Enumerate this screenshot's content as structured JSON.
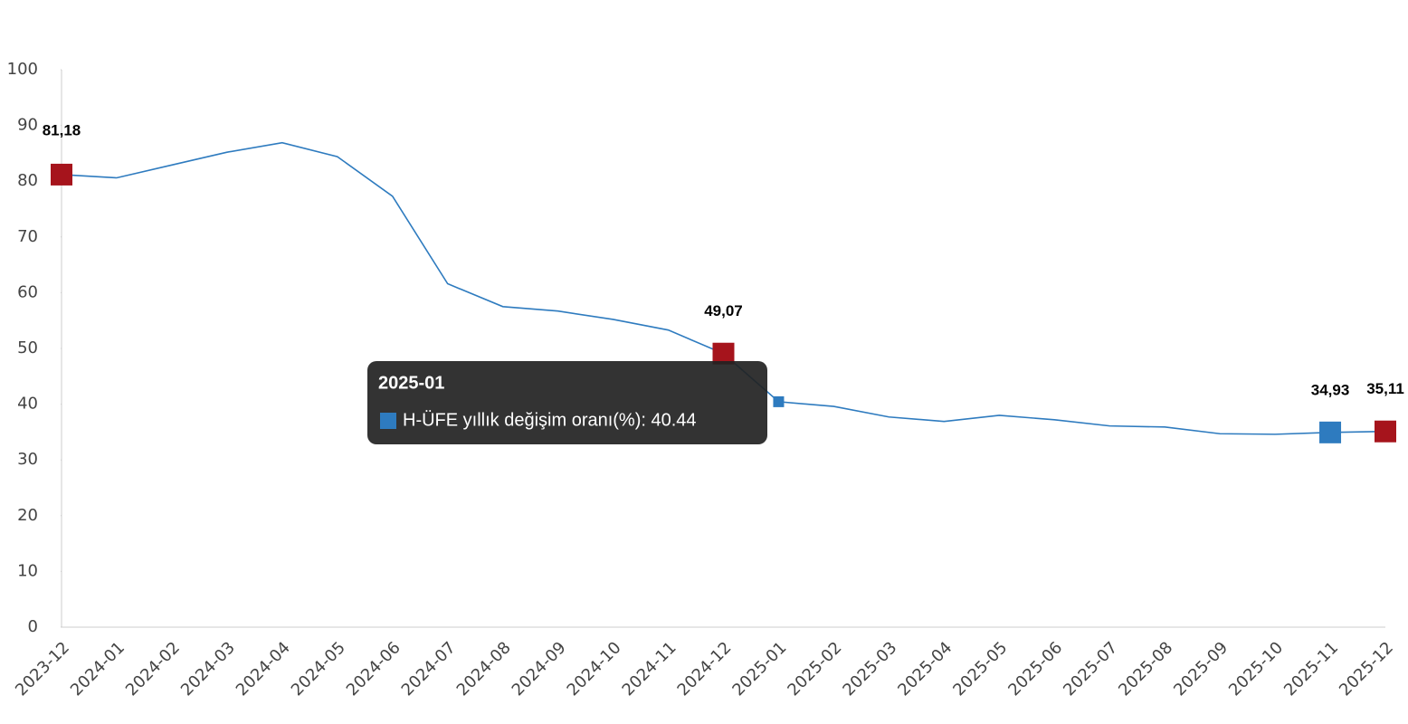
{
  "chart_data": {
    "type": "line",
    "categories": [
      "2023-12",
      "2024-01",
      "2024-02",
      "2024-03",
      "2024-04",
      "2024-05",
      "2024-06",
      "2024-07",
      "2024-08",
      "2024-09",
      "2024-10",
      "2024-11",
      "2024-12",
      "2025-01",
      "2025-02",
      "2025-03",
      "2025-04",
      "2025-05",
      "2025-06",
      "2025-07",
      "2025-08",
      "2025-09",
      "2025-10",
      "2025-11",
      "2025-12"
    ],
    "series": [
      {
        "name": "H-ÜFE yıllık değişim oranı(%)",
        "color": "#2e7bbf",
        "values": [
          81.18,
          80.6,
          82.9,
          85.2,
          86.9,
          84.4,
          77.3,
          61.6,
          57.5,
          56.7,
          55.2,
          53.3,
          49.07,
          40.44,
          39.6,
          37.7,
          36.9,
          38.0,
          37.2,
          36.1,
          35.9,
          34.7,
          34.6,
          34.93,
          35.11
        ],
        "value_labels": [
          "81,18",
          null,
          null,
          null,
          null,
          null,
          null,
          null,
          null,
          null,
          null,
          null,
          "49,07",
          null,
          null,
          null,
          null,
          null,
          null,
          null,
          null,
          null,
          null,
          "34,93",
          "35,11"
        ]
      }
    ],
    "markers": [
      {
        "index": 0,
        "color": "#a6141c"
      },
      {
        "index": 12,
        "color": "#a6141c"
      },
      {
        "index": 23,
        "color": "#2e7bbf"
      },
      {
        "index": 24,
        "color": "#a6141c"
      }
    ],
    "ylim": [
      0,
      100
    ],
    "yticks": [
      0,
      10,
      20,
      30,
      40,
      50,
      60,
      70,
      80,
      90,
      100
    ],
    "grid": false,
    "tooltip": {
      "index": 13,
      "title": "2025-01",
      "text": "H-ÜFE yıllık değişim oranı(%): 40.44"
    }
  }
}
